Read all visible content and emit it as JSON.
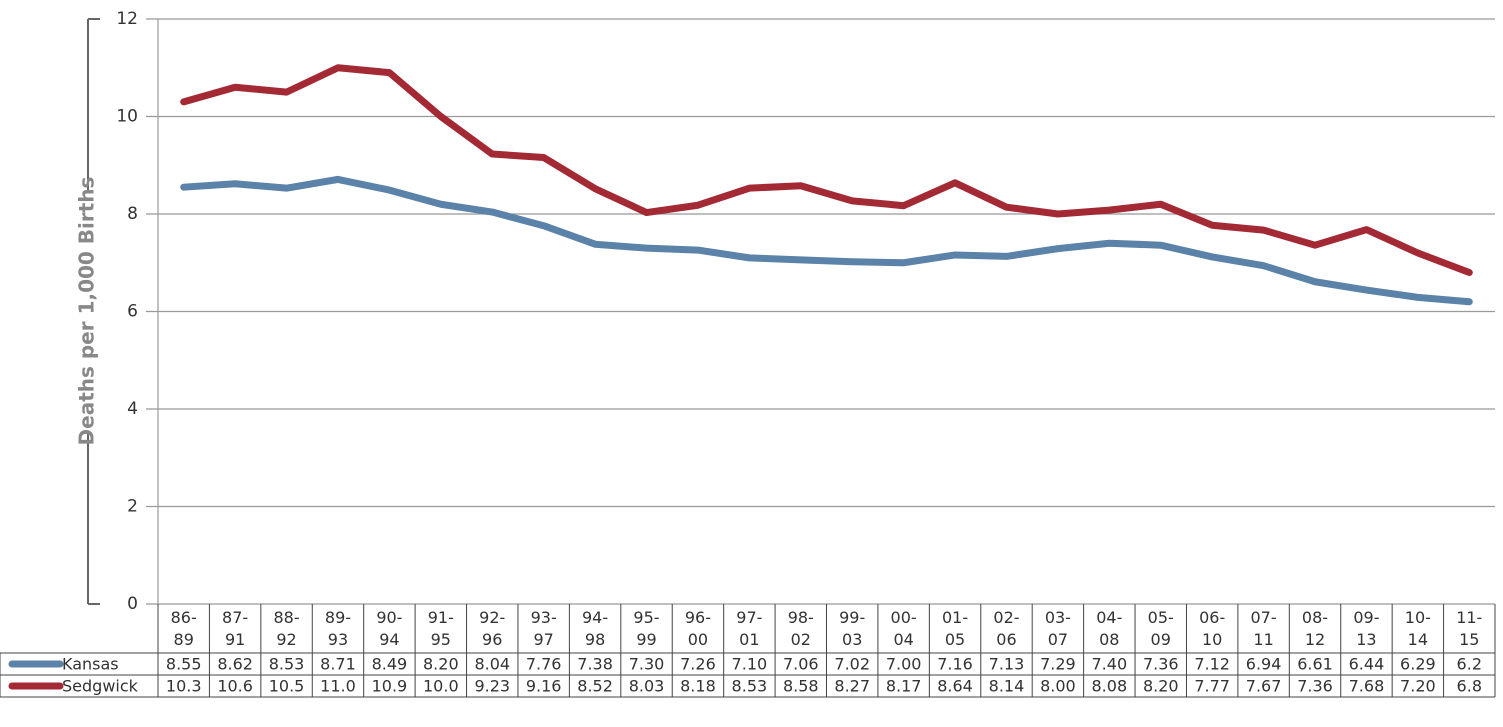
{
  "chart_data": {
    "type": "line",
    "y_label": "Deaths per 1,000 Births",
    "categories": [
      "86- 89",
      "87- 91",
      "88- 92",
      "89- 93",
      "90- 94",
      "91- 95",
      "92- 96",
      "93- 97",
      "94- 98",
      "95- 99",
      "96- 00",
      "97- 01",
      "98- 02",
      "99- 03",
      "00- 04",
      "01- 05",
      "02- 06",
      "03- 07",
      "04- 08",
      "05- 09",
      "06- 10",
      "07- 11",
      "08- 12",
      "09- 13",
      "10- 14",
      "11- 15"
    ],
    "series": [
      {
        "name": "Kansas",
        "color": "#5b82a8",
        "values": [
          8.55,
          8.62,
          8.53,
          8.71,
          8.49,
          8.2,
          8.04,
          7.76,
          7.38,
          7.3,
          7.26,
          7.1,
          7.06,
          7.02,
          7.0,
          7.16,
          7.13,
          7.29,
          7.4,
          7.36,
          7.12,
          6.94,
          6.61,
          6.44,
          6.29,
          6.2
        ],
        "value_labels": [
          "8.55",
          "8.62",
          "8.53",
          "8.71",
          "8.49",
          "8.20",
          "8.04",
          "7.76",
          "7.38",
          "7.30",
          "7.26",
          "7.10",
          "7.06",
          "7.02",
          "7.00",
          "7.16",
          "7.13",
          "7.29",
          "7.40",
          "7.36",
          "7.12",
          "6.94",
          "6.61",
          "6.44",
          "6.29",
          "6.2"
        ]
      },
      {
        "name": "Sedgwick",
        "color": "#a32a35",
        "values": [
          10.3,
          10.6,
          10.5,
          11.0,
          10.9,
          10.0,
          9.23,
          9.16,
          8.52,
          8.03,
          8.18,
          8.53,
          8.58,
          8.27,
          8.17,
          8.64,
          8.14,
          8.0,
          8.08,
          8.2,
          7.77,
          7.67,
          7.36,
          7.68,
          7.2,
          6.8
        ],
        "value_labels": [
          "10.3",
          "10.6",
          "10.5",
          "11.0",
          "10.9",
          "10.0",
          "9.23",
          "9.16",
          "8.52",
          "8.03",
          "8.18",
          "8.53",
          "8.58",
          "8.27",
          "8.17",
          "8.64",
          "8.14",
          "8.00",
          "8.08",
          "8.20",
          "7.77",
          "7.67",
          "7.36",
          "7.68",
          "7.20",
          "6.8"
        ]
      }
    ],
    "ylim": [
      0,
      12
    ],
    "yticks": [
      0,
      2,
      4,
      6,
      8,
      10,
      12
    ],
    "grid": true
  }
}
